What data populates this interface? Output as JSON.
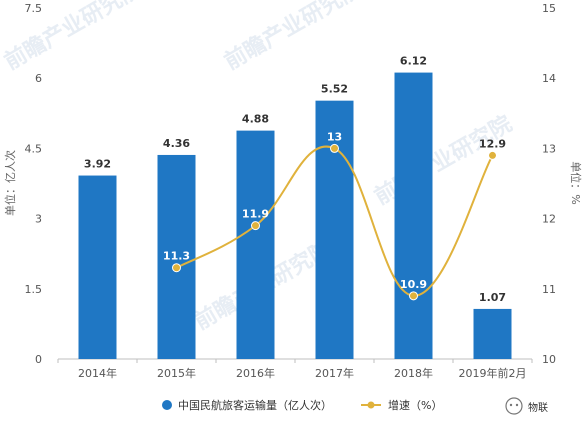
{
  "chart_data": {
    "type": "bar",
    "categories": [
      "2014年",
      "2015年",
      "2016年",
      "2017年",
      "2018年",
      "2019年前2月"
    ],
    "series": [
      {
        "name": "中国民航旅客运输量（亿人次）",
        "type": "bar",
        "axis": "left",
        "values": [
          3.92,
          4.36,
          4.88,
          5.52,
          6.12,
          1.07
        ],
        "labels": [
          "3.92",
          "4.36",
          "4.88",
          "5.52",
          "6.12",
          "1.07"
        ],
        "color": "#1f77c4"
      },
      {
        "name": "增速（%）",
        "type": "line",
        "axis": "right",
        "values": [
          null,
          11.3,
          11.9,
          13,
          10.9,
          12.9
        ],
        "labels": [
          "",
          "11.3",
          "11.9",
          "13",
          "10.9",
          "12.9"
        ],
        "color": "#e0b23c"
      }
    ],
    "ylabel_left": "单位：亿人次",
    "ylabel_right": "单位：%",
    "ylim_left": [
      0,
      7.5
    ],
    "yticks_left": [
      "0",
      "1.5",
      "3",
      "4.5",
      "6",
      "7.5"
    ],
    "ylim_right": [
      10,
      15
    ],
    "yticks_right": [
      "10",
      "11",
      "12",
      "13",
      "14",
      "15"
    ],
    "grid": false,
    "legend_position": "bottom"
  },
  "watermark": {
    "text": "前瞻产业研究院"
  },
  "source_badge": {
    "text": "物联"
  }
}
